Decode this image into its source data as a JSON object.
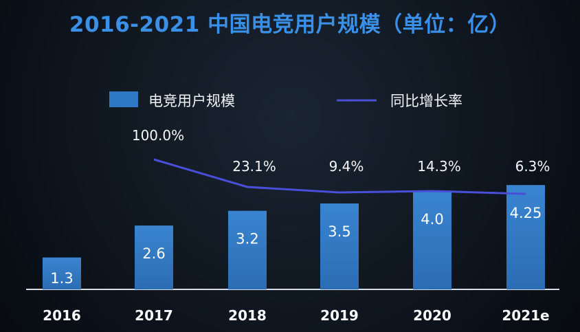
{
  "chart_data": {
    "type": "bar",
    "title": "2016-2021 中国电竞用户规模（单位：亿）",
    "categories": [
      "2016",
      "2017",
      "2018",
      "2019",
      "2020",
      "2021e"
    ],
    "series": [
      {
        "name": "电竞用户规模",
        "type": "bar",
        "values": [
          1.3,
          2.6,
          3.2,
          3.5,
          4.0,
          4.25
        ],
        "labels": [
          "1.3",
          "2.6",
          "3.2",
          "3.5",
          "4.0",
          "4.25"
        ],
        "color": "#2f78c4"
      },
      {
        "name": "同比增长率",
        "type": "line",
        "values": [
          null,
          100.0,
          23.1,
          9.4,
          14.3,
          6.3
        ],
        "labels": [
          "",
          "100.0%",
          "23.1%",
          "9.4%",
          "14.3%",
          "6.3%"
        ],
        "color": "#4a4fd8"
      }
    ],
    "xlabel": "",
    "ylabel": "",
    "ylim": [
      0,
      5.6
    ],
    "grid": false,
    "legend": "top"
  },
  "colors": {
    "background": "#111923",
    "title": "#3a8fe6",
    "axis": "#d6dde6"
  }
}
